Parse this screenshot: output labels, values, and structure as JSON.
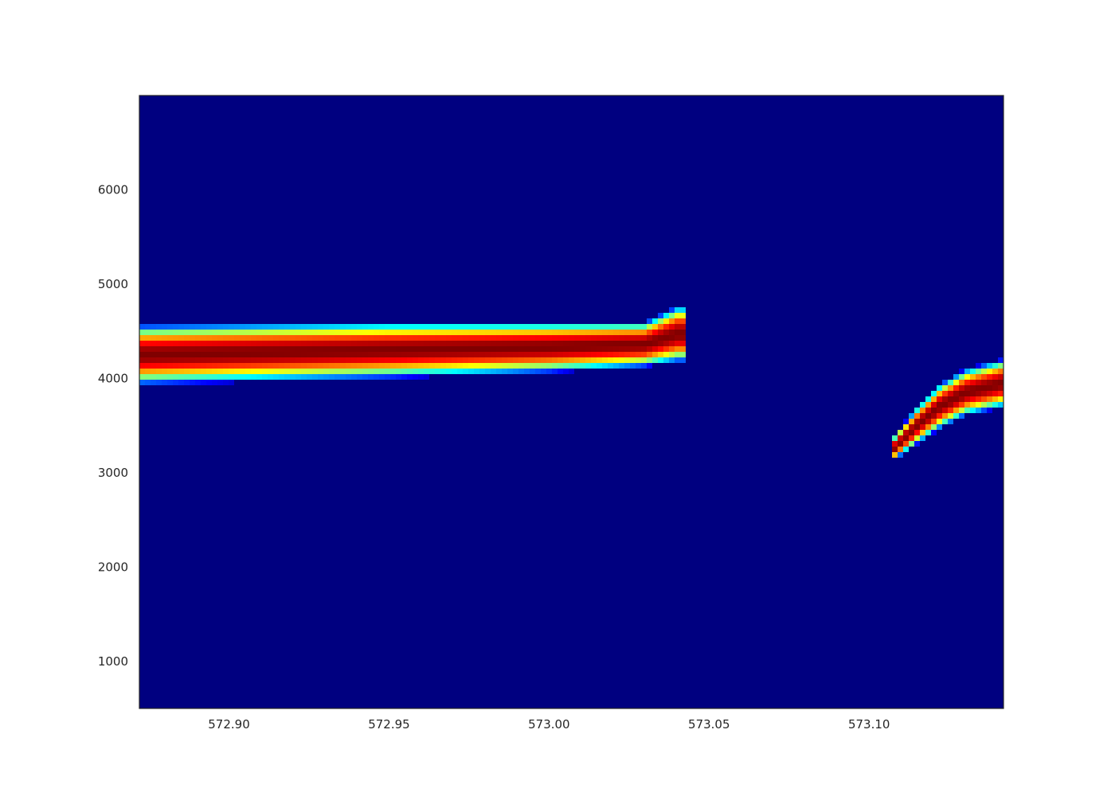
{
  "chart_data": {
    "type": "heatmap",
    "title": "",
    "xlabel": "",
    "ylabel": "",
    "colormap": "jet",
    "background_color": "#000080",
    "xlim": [
      572.872,
      573.142
    ],
    "ylim": [
      500,
      7000
    ],
    "x_ticks": [
      572.9,
      572.95,
      573.0,
      573.05,
      573.1
    ],
    "x_tick_labels": [
      "572.90",
      "572.95",
      "573.00",
      "573.05",
      "573.10"
    ],
    "y_ticks": [
      1000,
      2000,
      3000,
      4000,
      5000,
      6000
    ],
    "y_tick_labels": [
      "1000",
      "2000",
      "3000",
      "4000",
      "5000",
      "6000"
    ],
    "grid": false,
    "legend": "none",
    "bands": [
      {
        "x_start": 572.872,
        "x_end": 573.043,
        "center_y": [
          [
            572.872,
            4250
          ],
          [
            572.95,
            4300
          ],
          [
            573.0,
            4330
          ],
          [
            573.03,
            4360
          ],
          [
            573.04,
            4470
          ]
        ],
        "half_width_y": [
          [
            572.872,
            320
          ],
          [
            572.95,
            300
          ],
          [
            573.0,
            270
          ],
          [
            573.03,
            240
          ],
          [
            573.04,
            300
          ]
        ]
      },
      {
        "x_start": 573.107,
        "x_end": 573.142,
        "center_y": [
          [
            573.107,
            3230
          ],
          [
            573.115,
            3500
          ],
          [
            573.122,
            3700
          ],
          [
            573.13,
            3850
          ],
          [
            573.142,
            3950
          ]
        ],
        "half_width_y": [
          [
            573.107,
            120
          ],
          [
            573.115,
            200
          ],
          [
            573.122,
            240
          ],
          [
            573.13,
            250
          ],
          [
            573.142,
            260
          ]
        ]
      }
    ]
  }
}
